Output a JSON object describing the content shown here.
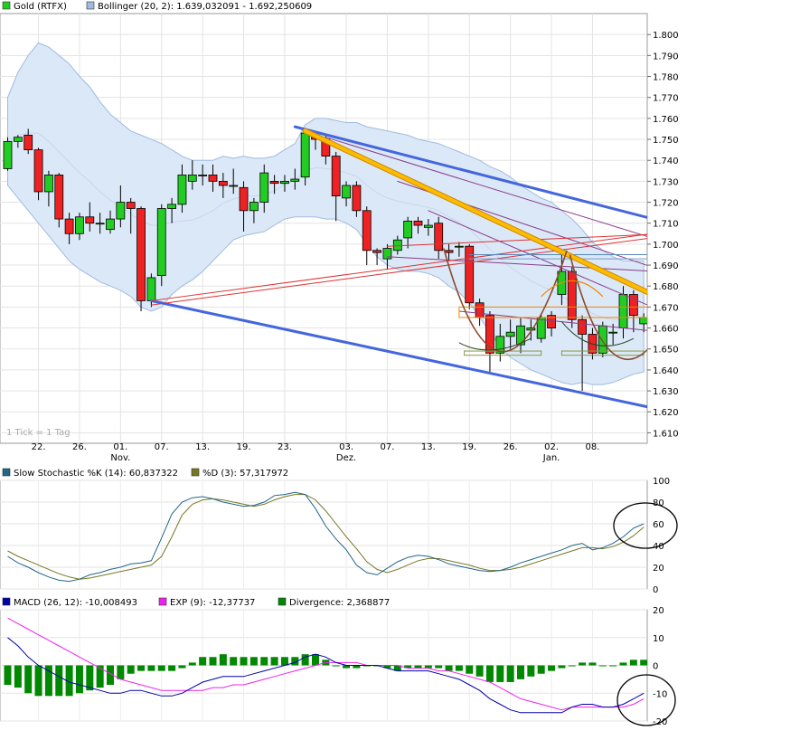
{
  "colors": {
    "up": "#22cc22",
    "down": "#ee2222",
    "band_fill": "#dbe8f7",
    "band_line": "#9fbbe0",
    "channel": "#4466dd",
    "trend": "#ffbb00",
    "stoch_k": "#226688",
    "stoch_d": "#777722",
    "macd": "#0000aa",
    "exp": "#ee22ee",
    "divergence": "#008800"
  },
  "chart_data": [
    {
      "type": "candlestick",
      "legend": [
        {
          "label": "Gold (RTFX)",
          "color": "#22cc22"
        },
        {
          "label": "Bollinger (20, 2): 1.639,032091 - 1.692,250609",
          "color": "#9fbbe0"
        }
      ],
      "ylim": [
        1.605,
        1.81
      ],
      "yticks": [
        "1.610",
        "1.620",
        "1.630",
        "1.640",
        "1.650",
        "1.660",
        "1.670",
        "1.680",
        "1.690",
        "1.700",
        "1.710",
        "1.720",
        "1.730",
        "1.740",
        "1.750",
        "1.760",
        "1.770",
        "1.780",
        "1.790",
        "1.800"
      ],
      "xticks": [
        {
          "label": "22.",
          "sub": "",
          "i": 3
        },
        {
          "label": "26.",
          "sub": "",
          "i": 7
        },
        {
          "label": "01.",
          "sub": "Nov.",
          "i": 11
        },
        {
          "label": "07.",
          "sub": "",
          "i": 15
        },
        {
          "label": "13.",
          "sub": "",
          "i": 19
        },
        {
          "label": "19.",
          "sub": "",
          "i": 23
        },
        {
          "label": "23.",
          "sub": "",
          "i": 27
        },
        {
          "label": "03.",
          "sub": "Dez.",
          "i": 33
        },
        {
          "label": "07.",
          "sub": "",
          "i": 37
        },
        {
          "label": "13.",
          "sub": "",
          "i": 41
        },
        {
          "label": "19.",
          "sub": "",
          "i": 45
        },
        {
          "label": "26.",
          "sub": "",
          "i": 49
        },
        {
          "label": "02.",
          "sub": "Jan.",
          "i": 53
        },
        {
          "label": "08.",
          "sub": "",
          "i": 57
        }
      ],
      "footnote": "1 Tick = 1 Tag",
      "candles": [
        [
          1.736,
          1.749,
          1.735,
          1.751
        ],
        [
          1.749,
          1.751,
          1.746,
          1.752
        ],
        [
          1.752,
          1.745,
          1.743,
          1.755
        ],
        [
          1.745,
          1.725,
          1.721,
          1.746
        ],
        [
          1.725,
          1.733,
          1.718,
          1.735
        ],
        [
          1.733,
          1.712,
          1.708,
          1.734
        ],
        [
          1.712,
          1.705,
          1.7,
          1.715
        ],
        [
          1.705,
          1.713,
          1.702,
          1.715
        ],
        [
          1.713,
          1.71,
          1.706,
          1.72
        ],
        [
          1.71,
          1.71,
          1.705,
          1.715
        ],
        [
          1.707,
          1.712,
          1.705,
          1.716
        ],
        [
          1.712,
          1.72,
          1.708,
          1.728
        ],
        [
          1.72,
          1.717,
          1.705,
          1.722
        ],
        [
          1.717,
          1.673,
          1.668,
          1.718
        ],
        [
          1.673,
          1.684,
          1.67,
          1.686
        ],
        [
          1.685,
          1.717,
          1.68,
          1.719
        ],
        [
          1.717,
          1.719,
          1.71,
          1.722
        ],
        [
          1.719,
          1.733,
          1.715,
          1.738
        ],
        [
          1.73,
          1.733,
          1.726,
          1.74
        ],
        [
          1.733,
          1.733,
          1.728,
          1.738
        ],
        [
          1.733,
          1.73,
          1.725,
          1.738
        ],
        [
          1.73,
          1.728,
          1.722,
          1.734
        ],
        [
          1.728,
          1.728,
          1.724,
          1.736
        ],
        [
          1.727,
          1.716,
          1.706,
          1.73
        ],
        [
          1.716,
          1.72,
          1.71,
          1.722
        ],
        [
          1.72,
          1.734,
          1.715,
          1.738
        ],
        [
          1.73,
          1.729,
          1.724,
          1.733
        ],
        [
          1.729,
          1.73,
          1.725,
          1.733
        ],
        [
          1.73,
          1.731,
          1.726,
          1.736
        ],
        [
          1.732,
          1.753,
          1.728,
          1.754
        ],
        [
          1.751,
          1.75,
          1.745,
          1.754
        ],
        [
          1.75,
          1.742,
          1.738,
          1.752
        ],
        [
          1.742,
          1.723,
          1.711,
          1.744
        ],
        [
          1.722,
          1.728,
          1.718,
          1.73
        ],
        [
          1.728,
          1.716,
          1.713,
          1.73
        ],
        [
          1.716,
          1.697,
          1.69,
          1.718
        ],
        [
          1.697,
          1.696,
          1.69,
          1.698
        ],
        [
          1.693,
          1.698,
          1.688,
          1.7
        ],
        [
          1.697,
          1.702,
          1.695,
          1.704
        ],
        [
          1.703,
          1.711,
          1.698,
          1.713
        ],
        [
          1.711,
          1.709,
          1.705,
          1.713
        ],
        [
          1.708,
          1.709,
          1.704,
          1.712
        ],
        [
          1.71,
          1.697,
          1.693,
          1.713
        ],
        [
          1.697,
          1.696,
          1.692,
          1.7
        ],
        [
          1.699,
          1.699,
          1.694,
          1.701
        ],
        [
          1.699,
          1.672,
          1.669,
          1.7
        ],
        [
          1.672,
          1.665,
          1.661,
          1.674
        ],
        [
          1.666,
          1.648,
          1.639,
          1.668
        ],
        [
          1.648,
          1.656,
          1.644,
          1.662
        ],
        [
          1.656,
          1.658,
          1.65,
          1.664
        ],
        [
          1.652,
          1.661,
          1.648,
          1.665
        ],
        [
          1.659,
          1.66,
          1.654,
          1.664
        ],
        [
          1.655,
          1.665,
          1.653,
          1.667
        ],
        [
          1.666,
          1.66,
          1.656,
          1.668
        ],
        [
          1.676,
          1.687,
          1.671,
          1.695
        ],
        [
          1.687,
          1.664,
          1.66,
          1.689
        ],
        [
          1.664,
          1.657,
          1.63,
          1.666
        ],
        [
          1.657,
          1.648,
          1.645,
          1.66
        ],
        [
          1.648,
          1.661,
          1.646,
          1.663
        ],
        [
          1.658,
          1.658,
          1.652,
          1.662
        ],
        [
          1.66,
          1.676,
          1.655,
          1.68
        ],
        [
          1.676,
          1.666,
          1.658,
          1.678
        ],
        [
          1.662,
          1.665,
          1.658,
          1.667
        ]
      ],
      "bollinger_upper": [
        1.77,
        1.782,
        1.79,
        1.796,
        1.794,
        1.79,
        1.786,
        1.78,
        1.775,
        1.768,
        1.762,
        1.758,
        1.754,
        1.752,
        1.75,
        1.748,
        1.745,
        1.742,
        1.74,
        1.74,
        1.74,
        1.742,
        1.741,
        1.742,
        1.741,
        1.741,
        1.742,
        1.745,
        1.748,
        1.757,
        1.76,
        1.76,
        1.759,
        1.758,
        1.758,
        1.756,
        1.755,
        1.754,
        1.753,
        1.752,
        1.75,
        1.749,
        1.748,
        1.746,
        1.744,
        1.742,
        1.74,
        1.737,
        1.735,
        1.732,
        1.728,
        1.725,
        1.722,
        1.72,
        1.716,
        1.712,
        1.707,
        1.701,
        1.697,
        1.694,
        1.692,
        1.692,
        1.692
      ],
      "bollinger_lower": [
        1.728,
        1.722,
        1.716,
        1.71,
        1.704,
        1.698,
        1.692,
        1.688,
        1.685,
        1.682,
        1.68,
        1.678,
        1.675,
        1.67,
        1.668,
        1.67,
        1.676,
        1.68,
        1.683,
        1.687,
        1.692,
        1.697,
        1.702,
        1.704,
        1.705,
        1.706,
        1.709,
        1.712,
        1.713,
        1.713,
        1.713,
        1.712,
        1.712,
        1.71,
        1.707,
        1.7,
        1.694,
        1.69,
        1.688,
        1.687,
        1.687,
        1.686,
        1.684,
        1.68,
        1.677,
        1.672,
        1.665,
        1.658,
        1.651,
        1.646,
        1.643,
        1.64,
        1.638,
        1.636,
        1.634,
        1.633,
        1.634,
        1.633,
        1.633,
        1.634,
        1.636,
        1.638,
        1.639
      ]
    },
    {
      "type": "line",
      "legend": [
        {
          "label": "Slow Stochastic %K (14): 60,837322",
          "color": "#226688"
        },
        {
          "label": "%D (3): 57,317972",
          "color": "#777722"
        }
      ],
      "ylim": [
        0,
        100
      ],
      "yticks": [
        "0",
        "20",
        "40",
        "60",
        "80",
        "100"
      ],
      "series": [
        {
          "values": [
            30,
            24,
            20,
            15,
            11,
            8,
            7,
            9,
            13,
            15,
            18,
            20,
            23,
            24,
            26,
            47,
            69,
            80,
            84,
            85,
            83,
            80,
            78,
            76,
            77,
            80,
            86,
            87,
            89,
            87,
            74,
            58,
            46,
            36,
            22,
            15,
            13,
            19,
            25,
            29,
            31,
            30,
            27,
            23,
            21,
            19,
            17,
            16,
            17,
            20,
            24,
            27,
            30,
            33,
            36,
            40,
            42,
            36,
            38,
            42,
            48,
            56,
            60
          ]
        },
        {
          "values": [
            35,
            30,
            26,
            22,
            18,
            14,
            11,
            9,
            10,
            12,
            14,
            16,
            18,
            20,
            22,
            30,
            48,
            68,
            78,
            82,
            83,
            82,
            80,
            78,
            76,
            78,
            82,
            85,
            87,
            87,
            82,
            72,
            60,
            48,
            37,
            25,
            18,
            15,
            18,
            22,
            26,
            28,
            28,
            26,
            24,
            22,
            19,
            17,
            17,
            18,
            20,
            23,
            26,
            29,
            32,
            35,
            38,
            38,
            37,
            39,
            43,
            49,
            57
          ]
        }
      ]
    },
    {
      "type": "bar+line",
      "legend": [
        {
          "label": "MACD (26, 12): -10,008493",
          "color": "#0000aa"
        },
        {
          "label": "EXP (9): -12,37737",
          "color": "#ee22ee"
        },
        {
          "label": "Divergence: 2,368877",
          "color": "#008800"
        }
      ],
      "ylim": [
        -20,
        20
      ],
      "yticks": [
        "20",
        "10",
        "0",
        "-10",
        "-20"
      ],
      "series": [
        {
          "name": "MACD (26, 12)",
          "values": [
            10,
            7,
            3,
            0,
            -2,
            -4,
            -6,
            -7,
            -8,
            -9,
            -10,
            -10,
            -9,
            -9,
            -10,
            -11,
            -11,
            -10,
            -8,
            -6,
            -5,
            -4,
            -4,
            -4,
            -3,
            -2,
            -1,
            0,
            1,
            3,
            4,
            3,
            1,
            0,
            0,
            0,
            0,
            -1,
            -2,
            -2,
            -2,
            -2,
            -3,
            -4,
            -5,
            -7,
            -9,
            -12,
            -14,
            -16,
            -17,
            -17,
            -17,
            -17,
            -17,
            -15,
            -14,
            -14,
            -15,
            -15,
            -14,
            -12,
            -10
          ]
        },
        {
          "name": "EXP (9)",
          "values": [
            17,
            15,
            13,
            11,
            9,
            7,
            5,
            3,
            1,
            -1,
            -3,
            -5,
            -6,
            -7,
            -8,
            -9,
            -9,
            -9,
            -9,
            -9,
            -8,
            -8,
            -7,
            -7,
            -6,
            -5,
            -4,
            -3,
            -2,
            -1,
            0,
            1,
            1,
            1,
            1,
            0,
            0,
            0,
            0,
            -1,
            -1,
            -1,
            -2,
            -2,
            -3,
            -4,
            -5,
            -6,
            -8,
            -10,
            -12,
            -13,
            -14,
            -15,
            -16,
            -15,
            -15,
            -15,
            -15,
            -15,
            -15,
            -14,
            -12
          ]
        },
        {
          "name": "Divergence",
          "values": [
            -7,
            -8,
            -10,
            -11,
            -11,
            -11,
            -11,
            -10,
            -9,
            -8,
            -7,
            -5,
            -3,
            -2,
            -2,
            -2,
            -2,
            -1,
            1,
            3,
            3,
            4,
            3,
            3,
            3,
            3,
            3,
            3,
            3,
            4,
            4,
            2,
            0,
            -1,
            -1,
            0,
            0,
            -1,
            -2,
            -1,
            -1,
            -1,
            -1,
            -2,
            -2,
            -3,
            -4,
            -6,
            -6,
            -6,
            -5,
            -4,
            -3,
            -2,
            -1,
            0,
            1,
            1,
            0,
            0,
            1,
            2,
            2
          ]
        }
      ]
    }
  ]
}
